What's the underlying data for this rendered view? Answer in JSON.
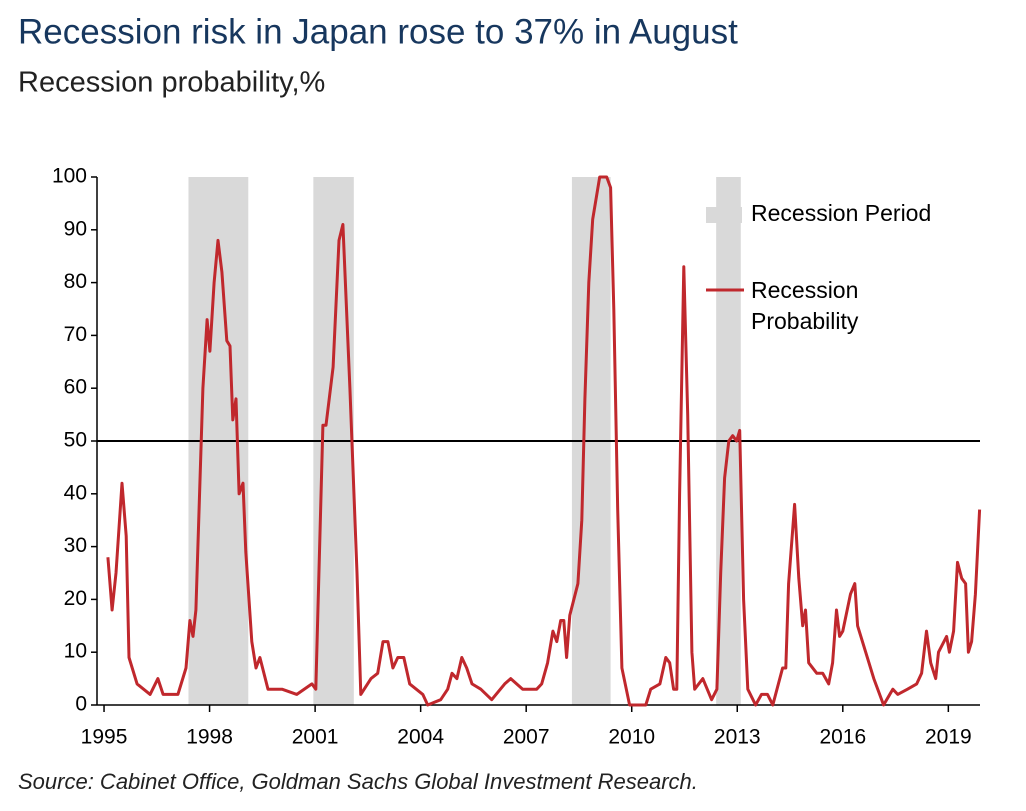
{
  "chart_data": {
    "type": "line",
    "title": "Recession risk in Japan rose to 37% in August",
    "subtitle": "Recession probability,%",
    "source": "Source: Cabinet Office, Goldman Sachs Global Investment Research.",
    "xlim": [
      1994.8,
      2019.9
    ],
    "xticks": [
      1995,
      1998,
      2001,
      2004,
      2007,
      2010,
      2013,
      2016,
      2019
    ],
    "ylim": [
      0,
      100
    ],
    "yticks": [
      0,
      10,
      20,
      30,
      40,
      50,
      60,
      70,
      80,
      90,
      100
    ],
    "reference_line": 50,
    "legend": "top-right",
    "band_name": "Recession Period",
    "band_color": "#d9d9d9",
    "recession_periods": [
      [
        1997.4,
        1999.1
      ],
      [
        2000.95,
        2002.1
      ],
      [
        2008.3,
        2009.4
      ],
      [
        2012.4,
        2013.1
      ]
    ],
    "series": [
      {
        "name": "Recession Probability",
        "color": "#c0282d",
        "x": [
          1995.11,
          1995.23,
          1995.34,
          1995.51,
          1995.63,
          1995.71,
          1995.94,
          1996.31,
          1996.53,
          1996.68,
          1997.1,
          1997.33,
          1997.44,
          1997.53,
          1997.61,
          1997.81,
          1997.93,
          1998.01,
          1998.13,
          1998.24,
          1998.35,
          1998.49,
          1998.58,
          1998.66,
          1998.75,
          1998.84,
          1998.95,
          1999.03,
          1999.2,
          1999.32,
          1999.43,
          1999.66,
          2000.06,
          2000.48,
          2000.91,
          2001.02,
          2001.22,
          2001.31,
          2001.51,
          2001.68,
          2001.79,
          2001.99,
          2002.19,
          2002.3,
          2002.59,
          2002.78,
          2002.93,
          2003.07,
          2003.21,
          2003.35,
          2003.52,
          2003.69,
          2004.06,
          2004.2,
          2004.57,
          2004.77,
          2004.89,
          2005.03,
          2005.17,
          2005.31,
          2005.46,
          2005.71,
          2006.02,
          2006.39,
          2006.56,
          2006.9,
          2007.3,
          2007.44,
          2007.61,
          2007.76,
          2007.87,
          2007.98,
          2008.07,
          2008.15,
          2008.24,
          2008.47,
          2008.58,
          2008.67,
          2008.78,
          2008.89,
          2009.09,
          2009.29,
          2009.4,
          2009.49,
          2009.6,
          2009.72,
          2009.94,
          2010.4,
          2010.54,
          2010.8,
          2010.97,
          2011.08,
          2011.19,
          2011.28,
          2011.36,
          2011.48,
          2011.59,
          2011.71,
          2011.79,
          2012.02,
          2012.27,
          2012.42,
          2012.53,
          2012.64,
          2012.76,
          2012.87,
          2012.98,
          2013.07,
          2013.18,
          2013.3,
          2013.52,
          2013.69,
          2013.86,
          2014.01,
          2014.29,
          2014.38,
          2014.46,
          2014.63,
          2014.75,
          2014.86,
          2014.94,
          2015.03,
          2015.26,
          2015.43,
          2015.6,
          2015.71,
          2015.82,
          2015.91,
          2016.0,
          2016.22,
          2016.34,
          2016.42,
          2016.65,
          2016.88,
          2017.16,
          2017.42,
          2017.56,
          2017.84,
          2018.1,
          2018.24,
          2018.38,
          2018.5,
          2018.64,
          2018.72,
          2018.95,
          2019.03,
          2019.15,
          2019.26,
          2019.38,
          2019.49,
          2019.57,
          2019.66,
          2019.77,
          2019.89
        ],
        "values": [
          28,
          18,
          25,
          42,
          32,
          9,
          4,
          2,
          5,
          2,
          2,
          7,
          16,
          13,
          18,
          60,
          73,
          67,
          80,
          88,
          82,
          69,
          68,
          54,
          58,
          40,
          42,
          29,
          12,
          7,
          9,
          3,
          3,
          2,
          4,
          3,
          53,
          53,
          64,
          88,
          91,
          60,
          25,
          2,
          5,
          6,
          12,
          12,
          7,
          9,
          9,
          4,
          2,
          0,
          1,
          3,
          6,
          5,
          9,
          7,
          4,
          3,
          1,
          4,
          5,
          3,
          3,
          4,
          8,
          14,
          12,
          16,
          16,
          9,
          17,
          23,
          35,
          58,
          80,
          92,
          100,
          100,
          98,
          75,
          37,
          7,
          0,
          0,
          3,
          4,
          9,
          8,
          3,
          3,
          40,
          83,
          55,
          10,
          3,
          5,
          1,
          3,
          25,
          43,
          50,
          51,
          50,
          52,
          20,
          3,
          0,
          2,
          2,
          0,
          7,
          7,
          23,
          38,
          24,
          15,
          18,
          8,
          6,
          6,
          4,
          8,
          18,
          13,
          14,
          21,
          23,
          15,
          10,
          5,
          0,
          3,
          2,
          3,
          4,
          6,
          14,
          8,
          5,
          10,
          13,
          10,
          14,
          27,
          24,
          23,
          10,
          12,
          21,
          37
        ]
      }
    ]
  }
}
